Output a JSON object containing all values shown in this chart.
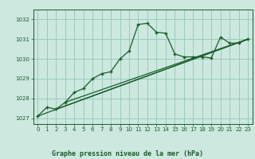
{
  "title": "Graphe pression niveau de la mer (hPa)",
  "bg_color": "#cce8df",
  "grid_color": "#99ccbb",
  "line_color": "#1a5c2a",
  "text_color": "#1a5c2a",
  "xlim": [
    -0.5,
    23.5
  ],
  "ylim": [
    1026.7,
    1032.5
  ],
  "yticks": [
    1027,
    1028,
    1029,
    1030,
    1031,
    1032
  ],
  "xticks": [
    0,
    1,
    2,
    3,
    4,
    5,
    6,
    7,
    8,
    9,
    10,
    11,
    12,
    13,
    14,
    15,
    16,
    17,
    18,
    19,
    20,
    21,
    22,
    23
  ],
  "series": [
    [
      0,
      1027.1
    ],
    [
      1,
      1027.55
    ],
    [
      2,
      1027.45
    ],
    [
      3,
      1027.8
    ],
    [
      4,
      1028.3
    ],
    [
      5,
      1028.5
    ],
    [
      6,
      1029.0
    ],
    [
      7,
      1029.25
    ],
    [
      8,
      1029.35
    ],
    [
      9,
      1030.0
    ],
    [
      10,
      1030.4
    ],
    [
      11,
      1031.75
    ],
    [
      12,
      1031.8
    ],
    [
      13,
      1031.35
    ],
    [
      14,
      1031.3
    ],
    [
      15,
      1030.25
    ],
    [
      16,
      1030.1
    ],
    [
      17,
      1030.1
    ],
    [
      18,
      1030.1
    ],
    [
      19,
      1030.05
    ],
    [
      20,
      1031.1
    ],
    [
      21,
      1030.8
    ],
    [
      22,
      1030.8
    ],
    [
      23,
      1031.0
    ]
  ],
  "line2": [
    [
      0,
      1027.1
    ],
    [
      23,
      1031.0
    ]
  ],
  "line3": [
    [
      2,
      1027.45
    ],
    [
      23,
      1031.0
    ]
  ],
  "line4": [
    [
      3,
      1027.8
    ],
    [
      23,
      1031.0
    ]
  ]
}
